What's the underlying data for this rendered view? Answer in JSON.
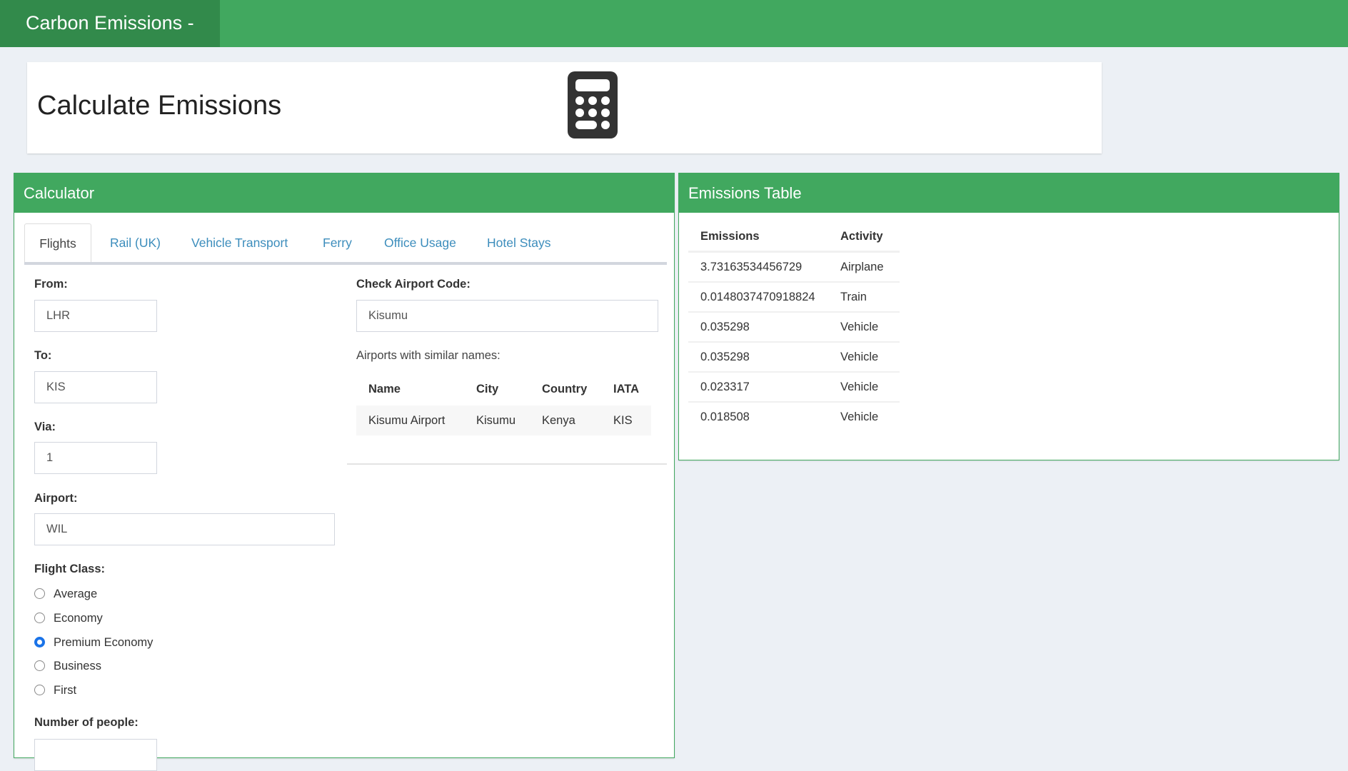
{
  "header": {
    "brand": "Carbon Emissions -"
  },
  "hero": {
    "title": "Calculate Emissions",
    "icon": "calculator-icon"
  },
  "calculator": {
    "title": "Calculator",
    "tabs": [
      {
        "label": "Flights",
        "active": true
      },
      {
        "label": "Rail (UK)"
      },
      {
        "label": "Vehicle Transport"
      },
      {
        "label": "Ferry"
      },
      {
        "label": "Office Usage"
      },
      {
        "label": "Hotel Stays"
      }
    ],
    "form": {
      "from_label": "From:",
      "from_value": "LHR",
      "to_label": "To:",
      "to_value": "KIS",
      "via_label": "Via:",
      "via_value": "1",
      "airport_label": "Airport:",
      "airport_value": "WIL",
      "class_label": "Flight Class:",
      "classes": [
        "Average",
        "Economy",
        "Premium Economy",
        "Business",
        "First"
      ],
      "selected_class": "Premium Economy",
      "people_label": "Number of people:"
    },
    "check": {
      "label": "Check Airport Code:",
      "value": "Kisumu",
      "similar_label": "Airports with similar names:",
      "columns": [
        "Name",
        "City",
        "Country",
        "IATA"
      ],
      "rows": [
        [
          "Kisumu Airport",
          "Kisumu",
          "Kenya",
          "KIS"
        ]
      ]
    }
  },
  "emissions": {
    "title": "Emissions Table",
    "columns": [
      "Emissions",
      "Activity"
    ],
    "rows": [
      [
        "3.73163534456729",
        "Airplane"
      ],
      [
        "0.0148037470918824",
        "Train"
      ],
      [
        "0.035298",
        "Vehicle"
      ],
      [
        "0.035298",
        "Vehicle"
      ],
      [
        "0.023317",
        "Vehicle"
      ],
      [
        "0.018508",
        "Vehicle"
      ]
    ]
  },
  "colors": {
    "brand": "#41a85f",
    "brand_dark": "#328a4b",
    "link": "#3c8dbc",
    "radio": "#1a73e8"
  }
}
